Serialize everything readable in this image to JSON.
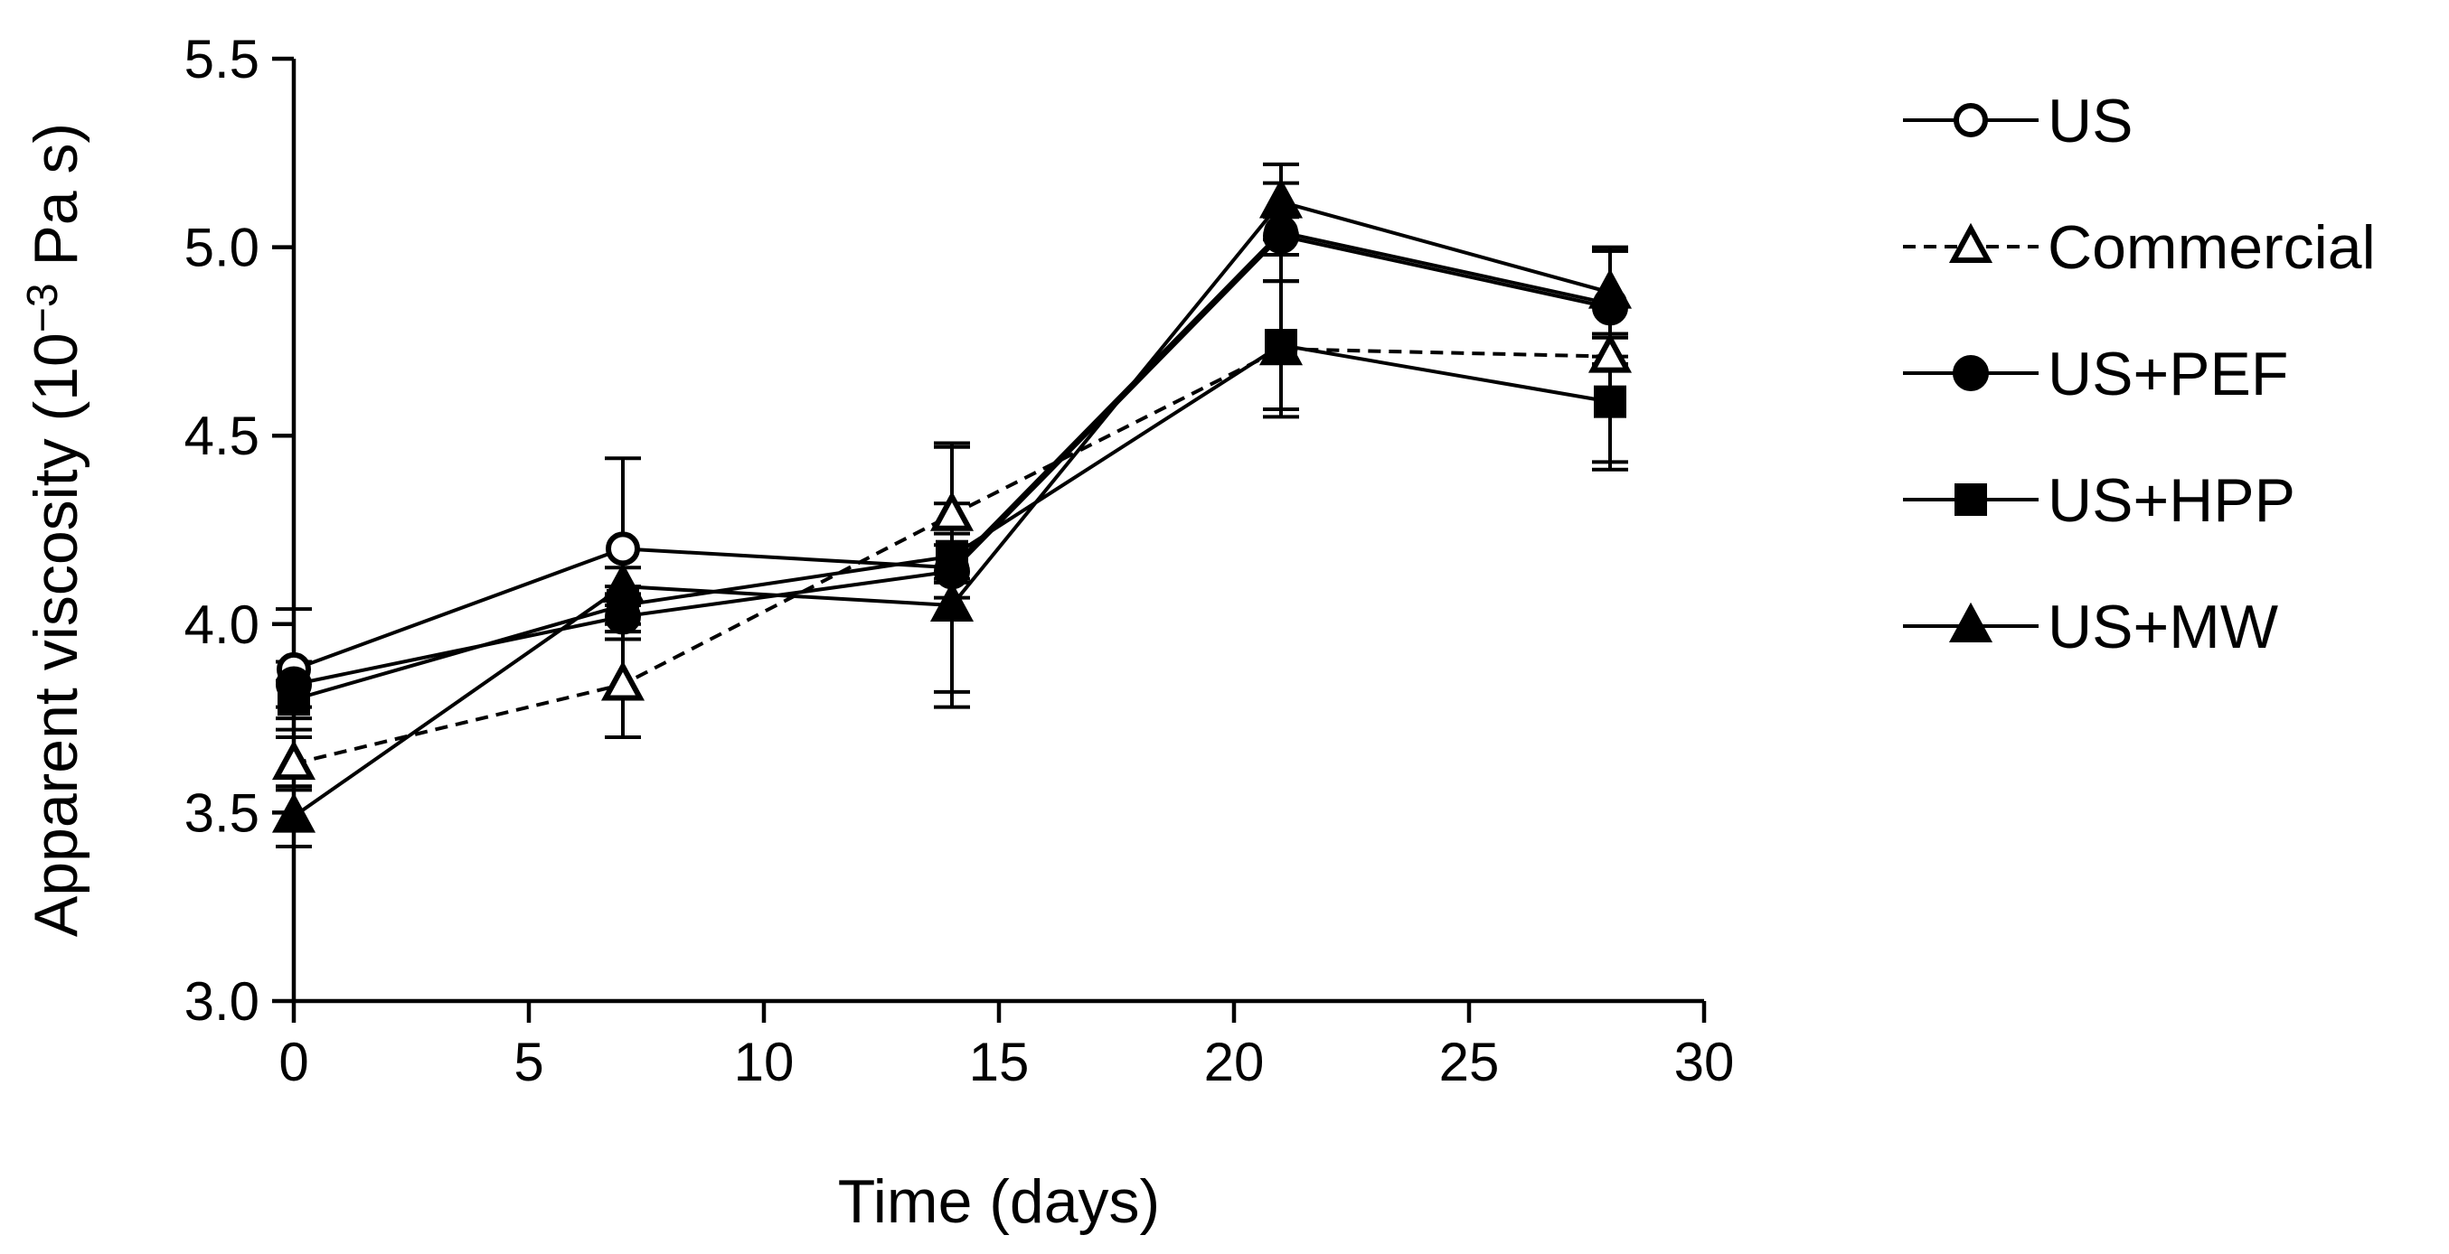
{
  "chart_data": {
    "type": "line",
    "title": "",
    "xlabel": "Time (days)",
    "ylabel": "Apparent viscosity (10",
    "ylabel_sup": "−3",
    "ylabel_tail": " Pa s)",
    "xlim": [
      0,
      30
    ],
    "ylim": [
      3.0,
      5.5
    ],
    "xticks": [
      0,
      5,
      10,
      15,
      20,
      25,
      30
    ],
    "xtick_labels": [
      "0",
      "5",
      "10",
      "15",
      "20",
      "25",
      "30"
    ],
    "yticks": [
      3.0,
      3.5,
      4.0,
      4.5,
      5.0,
      5.5
    ],
    "ytick_labels": [
      "3.0",
      "3.5",
      "4.0",
      "4.5",
      "5.0",
      "5.5"
    ],
    "grid": false,
    "legend_position": "right",
    "x": [
      0,
      7,
      14,
      21,
      28
    ],
    "series": [
      {
        "name": "US",
        "marker": "circle-open",
        "dash": "solid",
        "values": [
          3.88,
          4.2,
          4.15,
          5.04,
          4.85
        ],
        "errors": [
          0.16,
          0.24,
          0.33,
          0.13,
          0.14
        ]
      },
      {
        "name": "Commercial",
        "marker": "triangle-open",
        "dash": "dashed",
        "values": [
          3.63,
          3.84,
          4.29,
          4.73,
          4.71
        ],
        "errors": [
          0.07,
          0.14,
          0.18,
          0.18,
          0.28
        ]
      },
      {
        "name": "US+PEF",
        "marker": "circle-filled",
        "dash": "solid",
        "values": [
          3.84,
          4.02,
          4.14,
          5.03,
          4.84
        ],
        "errors": [
          0.06,
          0.06,
          0.07,
          0.05,
          0.15
        ]
      },
      {
        "name": "US+HPP",
        "marker": "square-filled",
        "dash": "solid",
        "values": [
          3.8,
          4.05,
          4.18,
          4.74,
          4.59
        ],
        "errors": [
          0.05,
          0.05,
          0.06,
          0.17,
          0.18
        ]
      },
      {
        "name": "US+MW",
        "marker": "triangle-filled",
        "dash": "solid",
        "values": [
          3.49,
          4.1,
          4.05,
          5.12,
          4.88
        ],
        "errors": [
          0.08,
          0.05,
          0.27,
          0.1,
          0.12
        ]
      }
    ]
  }
}
